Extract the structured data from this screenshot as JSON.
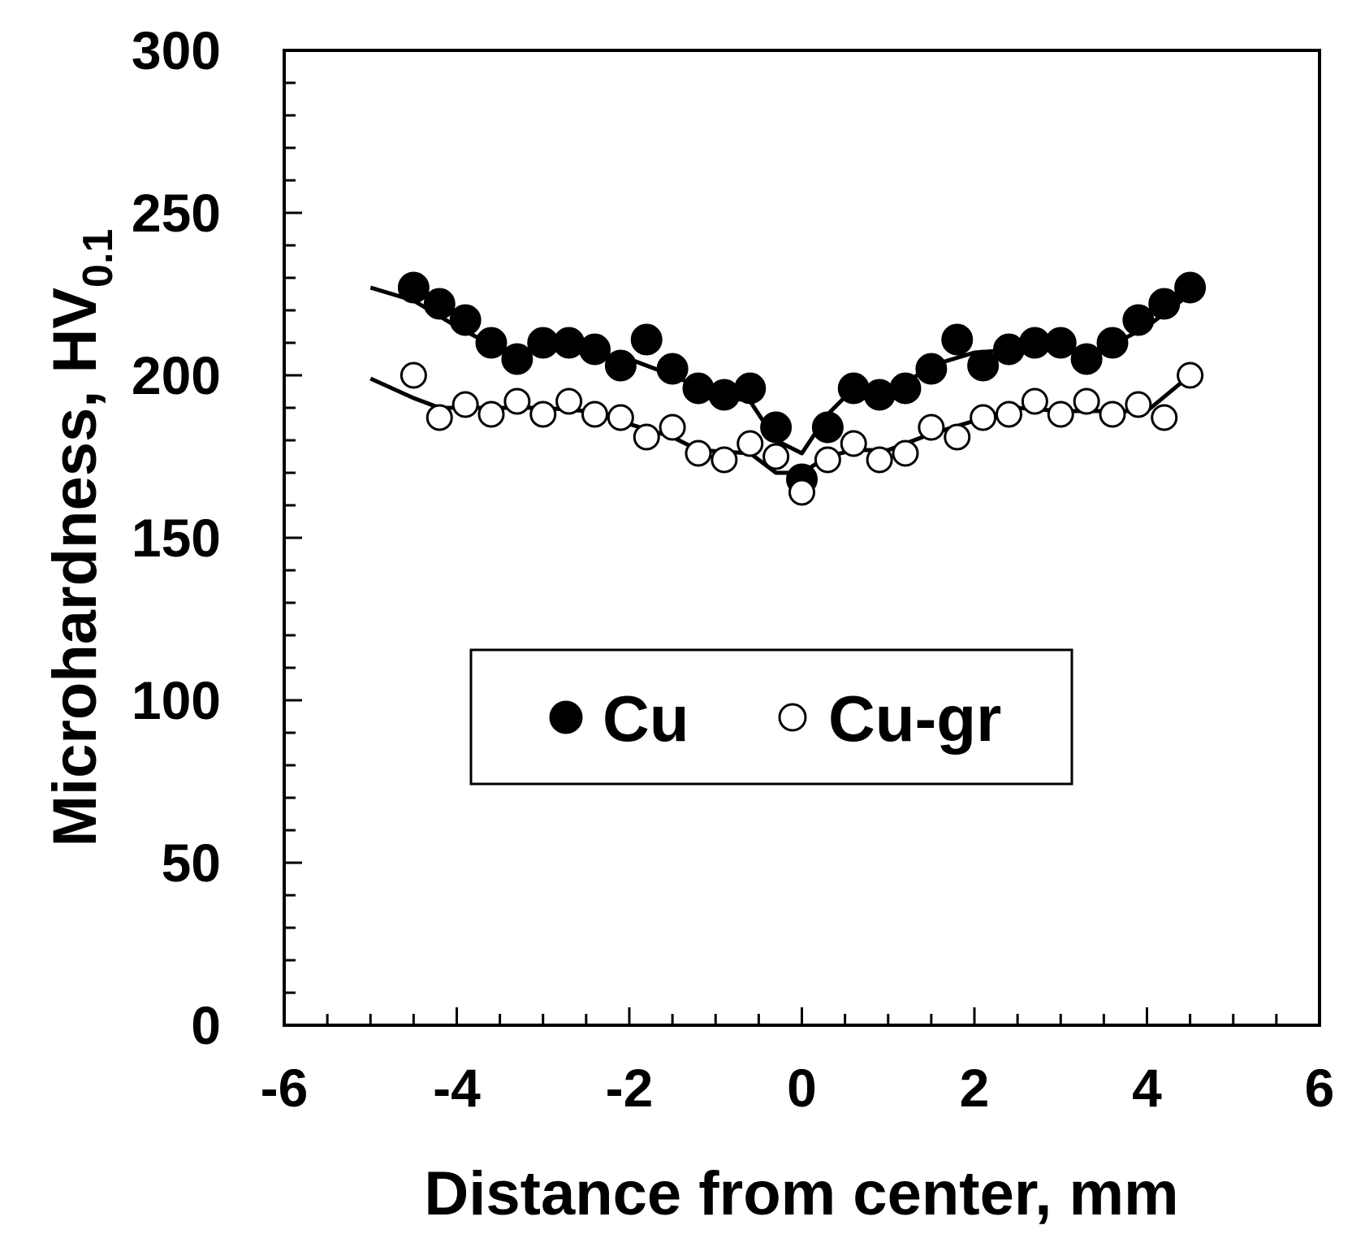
{
  "chart_data": {
    "type": "scatter",
    "xlabel": "Distance from center, mm",
    "ylabel": {
      "main": "Microhardness, HV",
      "subscript": "0.1"
    },
    "xlim": [
      -6,
      6
    ],
    "ylim": [
      0,
      300
    ],
    "x_ticks": [
      -6,
      -4,
      -2,
      0,
      2,
      4,
      6
    ],
    "y_ticks": [
      0,
      50,
      100,
      150,
      200,
      250,
      300
    ],
    "x_tick_labels": [
      "-6",
      "-4",
      "-2",
      "0",
      "2",
      "4",
      "6"
    ],
    "y_tick_labels": [
      "0",
      "50",
      "100",
      "150",
      "200",
      "250",
      "300"
    ],
    "grid": false,
    "legend": {
      "position": "center",
      "entries": [
        "Cu",
        "Cu-gr"
      ]
    },
    "series": [
      {
        "name": "Cu",
        "marker": "filled-circle",
        "color": "#000000",
        "x": [
          -4.5,
          -4.2,
          -3.9,
          -3.6,
          -3.3,
          -3.0,
          -2.7,
          -2.4,
          -2.1,
          -1.8,
          -1.5,
          -1.2,
          -0.9,
          -0.6,
          -0.3,
          0.0,
          0.3,
          0.6,
          0.9,
          1.2,
          1.5,
          1.8,
          2.1,
          2.4,
          2.7,
          3.0,
          3.3,
          3.6,
          3.9,
          4.2,
          4.5
        ],
        "y": [
          227,
          222,
          217,
          210,
          205,
          210,
          210,
          208,
          203,
          211,
          202,
          196,
          194,
          196,
          184,
          168,
          184,
          196,
          194,
          196,
          202,
          211,
          203,
          208,
          210,
          210,
          205,
          210,
          217,
          222,
          227
        ],
        "trend_line": {
          "x": [
            -5.0,
            -4.5,
            -4.0,
            -3.5,
            -3.0,
            -2.5,
            -2.0,
            -1.5,
            -1.0,
            -0.6,
            -0.3,
            0.0,
            0.3,
            0.6,
            1.0,
            1.5,
            2.0,
            2.5,
            3.0,
            3.5,
            4.0,
            4.5
          ],
          "y": [
            227,
            223,
            215,
            208,
            208,
            207,
            205,
            200,
            194,
            192,
            180,
            176,
            188,
            196,
            194,
            203,
            207,
            208,
            208,
            208,
            215,
            225
          ]
        }
      },
      {
        "name": "Cu-gr",
        "marker": "open-circle",
        "color": "#000000",
        "x": [
          -4.5,
          -4.2,
          -3.9,
          -3.6,
          -3.3,
          -3.0,
          -2.7,
          -2.4,
          -2.1,
          -1.8,
          -1.5,
          -1.2,
          -0.9,
          -0.6,
          -0.3,
          0.0,
          0.3,
          0.6,
          0.9,
          1.2,
          1.5,
          1.8,
          2.1,
          2.4,
          2.7,
          3.0,
          3.3,
          3.6,
          3.9,
          4.2,
          4.5
        ],
        "y": [
          200,
          187,
          191,
          188,
          192,
          188,
          192,
          188,
          187,
          181,
          184,
          176,
          174,
          179,
          175,
          164,
          174,
          179,
          174,
          176,
          184,
          181,
          187,
          188,
          192,
          188,
          192,
          188,
          191,
          187,
          200
        ],
        "trend_line": {
          "x": [
            -5.0,
            -4.5,
            -4.2,
            -3.5,
            -3.0,
            -2.5,
            -2.0,
            -1.5,
            -1.2,
            -0.6,
            -0.3,
            0.0,
            0.3,
            0.6,
            1.0,
            1.5,
            2.0,
            2.5,
            3.0,
            3.5,
            4.0,
            4.5
          ],
          "y": [
            199,
            193,
            190,
            190,
            190,
            189,
            185,
            181,
            177,
            176,
            170,
            170,
            175,
            177,
            177,
            182,
            186,
            190,
            189,
            189,
            189,
            200
          ]
        }
      }
    ]
  }
}
